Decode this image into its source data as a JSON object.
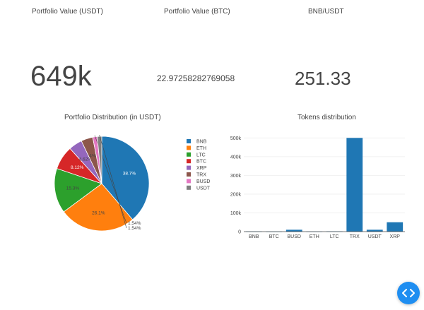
{
  "kpis": [
    {
      "title": "Portfolio Value (USDT)",
      "value": "649k"
    },
    {
      "title": "Portfolio Value (BTC)",
      "value": "22.97258282769058"
    },
    {
      "title": "BNB/USDT",
      "value": "251.33"
    }
  ],
  "pie": {
    "title": "Portfolio Distribution (in USDT)"
  },
  "bars": {
    "title": "Tokens distribution"
  },
  "fab": {
    "icon": "code-icon"
  },
  "chart_data": [
    {
      "type": "pie",
      "title": "Portfolio Distribution (in USDT)",
      "legend_position": "right",
      "labels": [
        "BNB",
        "ETH",
        "LTC",
        "BTC",
        "XRP",
        "TRX",
        "BUSD",
        "USDT"
      ],
      "values": [
        38.7,
        26.1,
        15.3,
        8.12,
        4.62,
        4,
        1.54,
        1.54
      ],
      "value_labels": [
        "38.7%",
        "26.1%",
        "15.3%",
        "8.12%",
        "4.62%",
        "4%",
        "1.54%",
        "1.54%"
      ],
      "colors": [
        "#1f77b4",
        "#ff7f0e",
        "#2ca02c",
        "#d62728",
        "#9467bd",
        "#8c564b",
        "#e377c2",
        "#7f7f7f"
      ]
    },
    {
      "type": "bar",
      "title": "Tokens distribution",
      "categories": [
        "BNB",
        "BTC",
        "BUSD",
        "ETH",
        "LTC",
        "TRX",
        "USDT",
        "XRP"
      ],
      "values": [
        1000,
        300,
        10000,
        400,
        1500,
        500000,
        10000,
        50000
      ],
      "ylim": [
        0,
        520000
      ],
      "yticks": [
        0,
        100000,
        200000,
        300000,
        400000,
        500000
      ],
      "ytick_labels": [
        "0",
        "100k",
        "200k",
        "300k",
        "400k",
        "500k"
      ],
      "grid": true,
      "color": "#1f77b4"
    }
  ]
}
